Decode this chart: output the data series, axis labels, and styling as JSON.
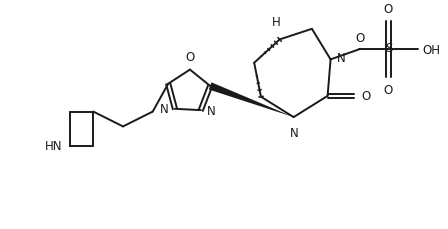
{
  "bg_color": "#ffffff",
  "line_color": "#1a1a1a",
  "lw": 1.4,
  "fs": 8.5,
  "figsize": [
    4.48,
    2.3
  ],
  "dpi": 100,
  "xlim": [
    -0.5,
    9.5
  ],
  "ylim": [
    -0.3,
    5.0
  ]
}
